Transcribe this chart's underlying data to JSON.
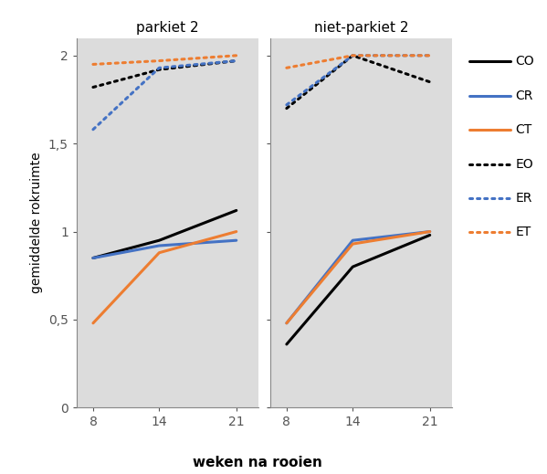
{
  "x": [
    8,
    14,
    21
  ],
  "parkiet2": {
    "CO": [
      0.85,
      0.95,
      1.12
    ],
    "CR": [
      0.85,
      0.92,
      0.95
    ],
    "CT": [
      0.48,
      0.88,
      1.0
    ],
    "EO": [
      1.82,
      1.92,
      1.97
    ],
    "ER": [
      1.58,
      1.93,
      1.97
    ],
    "ET": [
      1.95,
      1.97,
      2.0
    ]
  },
  "niet_parkiet2": {
    "CO": [
      0.36,
      0.8,
      0.98
    ],
    "CR": [
      0.48,
      0.95,
      1.0
    ],
    "CT": [
      0.48,
      0.93,
      1.0
    ],
    "EO": [
      1.7,
      2.0,
      1.85
    ],
    "ER": [
      1.72,
      2.0,
      2.0
    ],
    "ET": [
      1.93,
      2.0,
      2.0
    ]
  },
  "colors": {
    "CO": "#000000",
    "CR": "#4472C4",
    "CT": "#ED7D31",
    "EO": "#000000",
    "ER": "#4472C4",
    "ET": "#ED7D31"
  },
  "solid_series": [
    "CO",
    "CR",
    "CT"
  ],
  "dotted_series": [
    "EO",
    "ER",
    "ET"
  ],
  "xlabel": "weken na rooien",
  "ylabel": "gemiddelde rokruimte",
  "title_left": "parkiet 2",
  "title_right": "niet-parkiet 2",
  "ylim": [
    0,
    2.1
  ],
  "yticks": [
    0,
    0.5,
    1.0,
    1.5,
    2.0
  ],
  "ytick_labels": [
    "0",
    "0,5",
    "1",
    "1,5",
    "2"
  ],
  "background_color": "#DCDCDC",
  "linewidth": 2.2,
  "legend_items": [
    {
      "label": "CO",
      "color": "#000000",
      "ls": "solid"
    },
    {
      "label": "CR",
      "color": "#4472C4",
      "ls": "solid"
    },
    {
      "label": "CT",
      "color": "#ED7D31",
      "ls": "solid"
    },
    {
      "label": "EO",
      "color": "#000000",
      "ls": "dotted"
    },
    {
      "label": "ER",
      "color": "#4472C4",
      "ls": "dotted"
    },
    {
      "label": "ET",
      "color": "#ED7D31",
      "ls": "dotted"
    }
  ]
}
